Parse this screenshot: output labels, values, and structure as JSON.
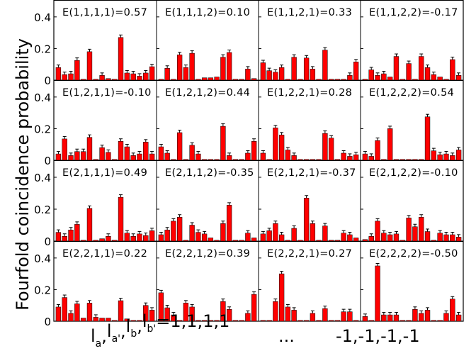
{
  "figure": {
    "ylabel": "Fourfold coincidence probability",
    "xlabel_left": "l",
    "xlabel_subs": [
      "a",
      "a'",
      "b",
      "b'"
    ],
    "xlabel_right": "=1,1,1,1",
    "xlabel_ellipsis": "...",
    "xlabel_end": "-1,-1,-1,-1",
    "bar_color": "#ff0000",
    "bar_edge_color": "#000000"
  },
  "chart_data": [
    {
      "type": "bar",
      "title": "E(1,1,1,1)=0.57",
      "ylim": [
        0,
        0.48
      ],
      "yticks": [
        0,
        0.2,
        0.4
      ],
      "ytick_labels": [
        "0",
        "0.2",
        "0.4"
      ],
      "values": [
        0.08,
        0.035,
        0.04,
        0.125,
        0.005,
        0.18,
        0.005,
        0.03,
        0.01,
        0.005,
        0.27,
        0.045,
        0.04,
        0.025,
        0.045,
        0.085
      ]
    },
    {
      "type": "bar",
      "title": "E(1,1,1,2)=0.10",
      "ylim": [
        0,
        0.48
      ],
      "values": [
        0.005,
        0.075,
        0.005,
        0.16,
        0.08,
        0.17,
        0.005,
        0.015,
        0.015,
        0.02,
        0.145,
        0.175,
        0.005,
        0.005,
        0.07,
        0.01
      ]
    },
    {
      "type": "bar",
      "title": "E(1,1,2,1)=0.33",
      "ylim": [
        0,
        0.48
      ],
      "values": [
        0.11,
        0.06,
        0.05,
        0.08,
        0.005,
        0.145,
        0.005,
        0.14,
        0.07,
        0.005,
        0.19,
        0.005,
        0.005,
        0.005,
        0.03,
        0.115
      ]
    },
    {
      "type": "bar",
      "title": "E(1,1,2,2)=-0.17",
      "ylim": [
        0,
        0.48
      ],
      "values": [
        0.005,
        0.065,
        0.03,
        0.04,
        0.02,
        0.15,
        0.005,
        0.105,
        0.005,
        0.15,
        0.08,
        0.035,
        0.02,
        0.005,
        0.13,
        0.03
      ]
    },
    {
      "type": "bar",
      "title": "E(1,2,1,1)=-0.10",
      "ylim": [
        0,
        0.48
      ],
      "values": [
        0.04,
        0.135,
        0.03,
        0.055,
        0.055,
        0.145,
        0.005,
        0.08,
        0.05,
        0.005,
        0.12,
        0.085,
        0.03,
        0.04,
        0.115,
        0.04
      ]
    },
    {
      "type": "bar",
      "title": "E(1,2,1,2)=0.44",
      "ylim": [
        0,
        0.48
      ],
      "values": [
        0.085,
        0.045,
        0.005,
        0.175,
        0.005,
        0.095,
        0.04,
        0.005,
        0.005,
        0.005,
        0.215,
        0.03,
        0.005,
        0.005,
        0.045,
        0.12
      ]
    },
    {
      "type": "bar",
      "title": "E(1,2,2,1)=0.28",
      "ylim": [
        0,
        0.48
      ],
      "values": [
        0.045,
        0.005,
        0.205,
        0.16,
        0.065,
        0.03,
        0.005,
        0.005,
        0.005,
        0.005,
        0.17,
        0.14,
        0.005,
        0.045,
        0.025,
        0.035
      ]
    },
    {
      "type": "bar",
      "title": "E(1,2,2,2)=0.54",
      "ylim": [
        0,
        0.48
      ],
      "values": [
        0.04,
        0.025,
        0.125,
        0.005,
        0.2,
        0.005,
        0.005,
        0.005,
        0.005,
        0.005,
        0.275,
        0.06,
        0.035,
        0.04,
        0.03,
        0.065
      ]
    },
    {
      "type": "bar",
      "title": "E(2,1,1,1)=0.49",
      "ylim": [
        0,
        0.48
      ],
      "values": [
        0.055,
        0.03,
        0.07,
        0.105,
        0.005,
        0.205,
        0.005,
        0.015,
        0.03,
        0.005,
        0.275,
        0.05,
        0.03,
        0.045,
        0.035,
        0.065
      ]
    },
    {
      "type": "bar",
      "title": "E(2,1,1,2)=-0.35",
      "ylim": [
        0,
        0.48
      ],
      "values": [
        0.04,
        0.07,
        0.125,
        0.15,
        0.005,
        0.1,
        0.055,
        0.045,
        0.02,
        0.005,
        0.11,
        0.225,
        0.005,
        0.005,
        0.05,
        0.02
      ]
    },
    {
      "type": "bar",
      "title": "E(2,1,2,1)=-0.37",
      "ylim": [
        0,
        0.48
      ],
      "values": [
        0.045,
        0.065,
        0.11,
        0.04,
        0.005,
        0.08,
        0.005,
        0.27,
        0.11,
        0.005,
        0.095,
        0.005,
        0.005,
        0.05,
        0.04,
        0.02
      ]
    },
    {
      "type": "bar",
      "title": "E(2,1,2,2)=-0.10",
      "ylim": [
        0,
        0.48
      ],
      "values": [
        0.01,
        0.03,
        0.125,
        0.05,
        0.04,
        0.045,
        0.005,
        0.145,
        0.09,
        0.15,
        0.06,
        0.005,
        0.05,
        0.04,
        0.04,
        0.025
      ]
    },
    {
      "type": "bar",
      "title": "E(2,2,1,1)=0.22",
      "ylim": [
        0,
        0.48
      ],
      "values": [
        0.09,
        0.15,
        0.05,
        0.11,
        0.02,
        0.115,
        0.025,
        0.02,
        0.02,
        0.005,
        0.13,
        0.015,
        0.005,
        0.005,
        0.1,
        0.07
      ]
    },
    {
      "type": "bar",
      "title": "E(2,2,1,2)=0.39",
      "ylim": [
        0,
        0.48
      ],
      "values": [
        0.18,
        0.085,
        0.04,
        0.005,
        0.115,
        0.09,
        0.005,
        0.005,
        0.005,
        0.005,
        0.125,
        0.075,
        0.005,
        0.005,
        0.05,
        0.17
      ]
    },
    {
      "type": "bar",
      "title": "E(2,2,2,1)=0.27",
      "ylim": [
        0,
        0.48
      ],
      "values": [
        0.005,
        0.005,
        0.125,
        0.3,
        0.09,
        0.07,
        0.005,
        0.005,
        0.05,
        0.005,
        0.08,
        0.005,
        0.005,
        0.06,
        0.06,
        0.005
      ]
    },
    {
      "type": "bar",
      "title": "E(2,2,2,2)=-0.50",
      "ylim": [
        0,
        0.48
      ],
      "values": [
        0.03,
        0.005,
        0.35,
        0.04,
        0.04,
        0.04,
        0.005,
        0.005,
        0.075,
        0.05,
        0.07,
        0.005,
        0.005,
        0.05,
        0.14,
        0.04
      ]
    }
  ]
}
